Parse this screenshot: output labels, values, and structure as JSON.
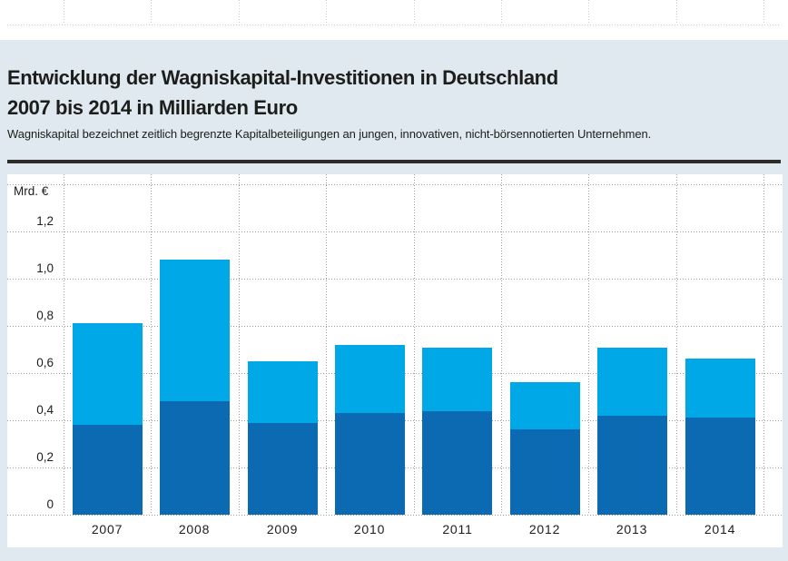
{
  "header": {
    "title_line1": "Entwicklung der Wagniskapital-Investitionen in Deutschland",
    "title_line2": "2007 bis 2014 in Milliarden Euro",
    "subtitle": "Wagniskapital bezeichnet zeitlich begrenzte Kapitalbeteiligungen an jungen, innovativen, nicht-börsennotierten Unternehmen."
  },
  "colors": {
    "page_background": "#dfe9ef",
    "panel_background": "#ffffff",
    "text": "#1d1d1b",
    "rule": "#2c2c2a",
    "grid": "#9a9a9a",
    "grid_remnant": "#c9cdd0",
    "bar_lower": "#0c6ab2",
    "bar_upper": "#01a8e8"
  },
  "chart_data": {
    "type": "bar",
    "stacked": true,
    "title": "Entwicklung der Wagniskapital-Investitionen in Deutschland 2007 bis 2014 in Milliarden Euro",
    "unit_label": "Mrd. €",
    "xlabel": "",
    "ylabel": "Mrd. €",
    "categories": [
      "2007",
      "2008",
      "2009",
      "2010",
      "2011",
      "2012",
      "2013",
      "2014"
    ],
    "series": [
      {
        "name": "unteres Segment (dunkelblau)",
        "color": "#0c6ab2",
        "values": [
          0.38,
          0.48,
          0.39,
          0.43,
          0.44,
          0.36,
          0.42,
          0.41
        ]
      },
      {
        "name": "oberes Segment (hellblau)",
        "color": "#01a8e8",
        "values": [
          0.43,
          0.6,
          0.26,
          0.29,
          0.27,
          0.2,
          0.29,
          0.25
        ]
      }
    ],
    "totals": [
      0.81,
      1.08,
      0.65,
      0.72,
      0.71,
      0.56,
      0.71,
      0.66
    ],
    "y_ticks": [
      "1,2",
      "1,0",
      "0,8",
      "0,6",
      "0,4",
      "0,2",
      "0"
    ],
    "y_tick_values": [
      1.2,
      1.0,
      0.8,
      0.6,
      0.4,
      0.2,
      0
    ],
    "gridline_values": [
      1.4,
      1.2,
      1.0,
      0.8,
      0.6,
      0.4,
      0.2,
      0
    ],
    "ylim": [
      0,
      1.4
    ],
    "grid": "dotted",
    "legend": "none"
  }
}
